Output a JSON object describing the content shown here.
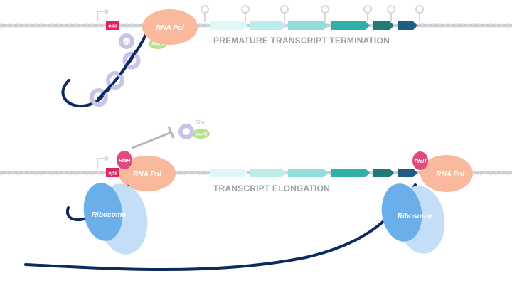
{
  "colors": {
    "dna_strand": "#c9cdd2",
    "rnap": "#f8b99c",
    "rnap_text": "#ffffff",
    "ops": "#e0245e",
    "rfah": "#e04a7f",
    "rho": "#c9c3ea",
    "nusg": "#b7e08f",
    "ribosome_dark": "#6aaeea",
    "ribosome_light": "#c3def6",
    "mrna": "#0d2a5e",
    "caption": "#9aa0a6",
    "inhibit": "#b5b5b5",
    "genes": [
      "#dff6f6",
      "#bdeced",
      "#8fdede",
      "#2fb1a8",
      "#1e7b78",
      "#1f5d85"
    ]
  },
  "top_panel": {
    "ops_label": "ops",
    "rnap_label": "RNA Pol",
    "rho_label": "Rho",
    "nusg_label": "NusG",
    "caption": "PREMATURE TRANSCRIPT TERMINATION"
  },
  "middle": {
    "rho_label": "Rho",
    "nusg_label": "NusG"
  },
  "bottom_panel": {
    "ops_label": "ops",
    "rfah_label": "RfaH",
    "rnap_label": "RNA Pol",
    "ribosome_label": "Ribosome",
    "caption": "TRANSCRIPT ELONGATION",
    "rfah_label_right": "RfaH",
    "rnap_label_right": "RNA Pol",
    "ribosome_label_right": "Ribosome"
  }
}
